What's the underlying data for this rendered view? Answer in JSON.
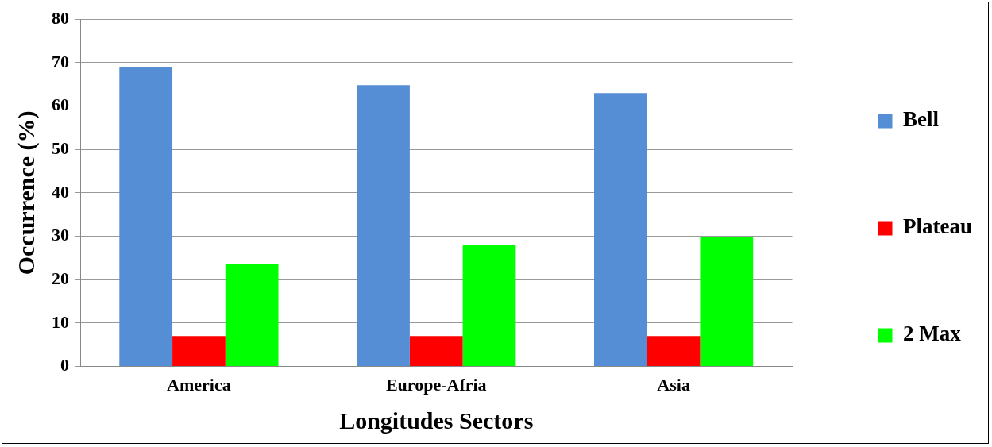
{
  "chart_data": {
    "type": "bar",
    "xlabel": "Longitudes Sectors",
    "ylabel": "Occurrence (%)",
    "categories": [
      "America",
      "Europe-Afria",
      "Asia"
    ],
    "series": [
      {
        "name": "Bell",
        "color": "#558ed5",
        "values": [
          69,
          64.8,
          63
        ]
      },
      {
        "name": "Plateau",
        "color": "#ff0000",
        "values": [
          7,
          7,
          7
        ]
      },
      {
        "name": "2 Max",
        "color": "#00ff00",
        "values": [
          23.7,
          28.1,
          29.8
        ]
      }
    ],
    "ylim": [
      0,
      80
    ],
    "yticks": [
      0,
      10,
      20,
      30,
      40,
      50,
      60,
      70,
      80
    ],
    "grid": "y",
    "legend": "right"
  }
}
